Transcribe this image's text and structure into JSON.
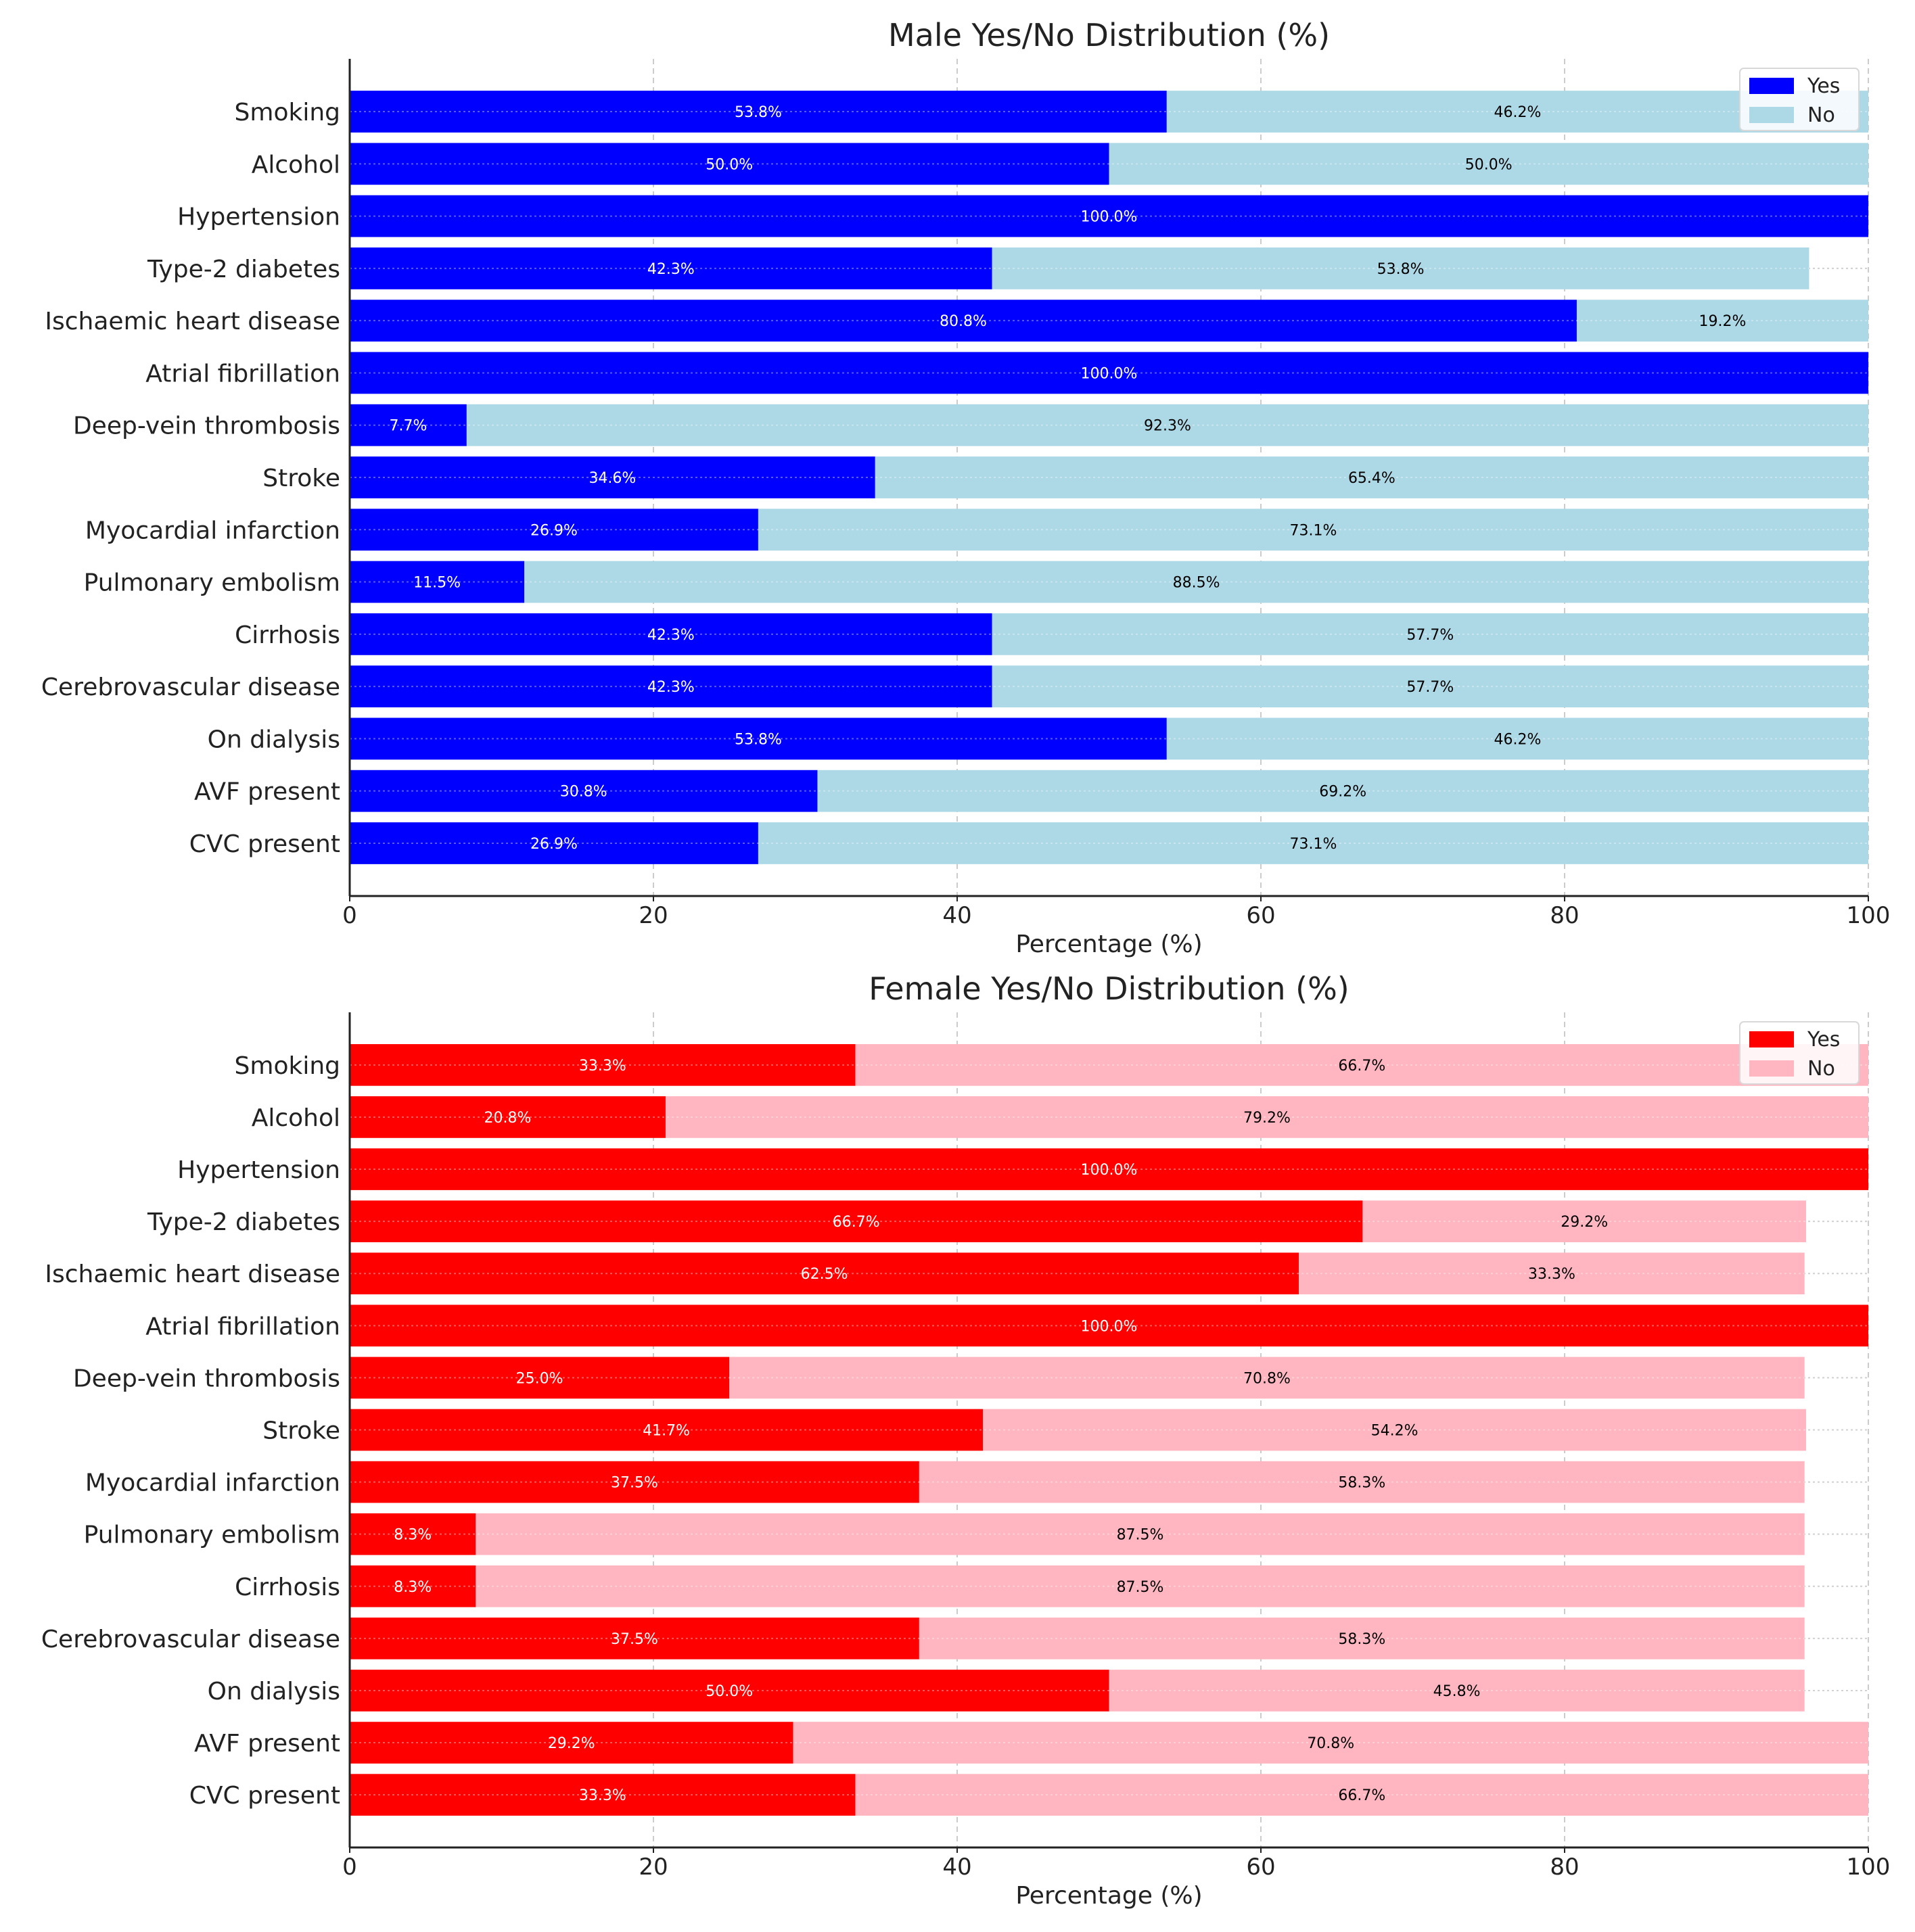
{
  "chart_data": [
    {
      "type": "bar",
      "orientation": "horizontal",
      "stacked": true,
      "title": "Male Yes/No Distribution (%)",
      "xlabel": "Percentage (%)",
      "ylabel": "",
      "xlim": [
        0,
        100
      ],
      "xticks": [
        "0",
        "20",
        "40",
        "60",
        "80",
        "100"
      ],
      "grid": true,
      "legend": "top-right",
      "categories": [
        "Smoking",
        "Alcohol",
        "Hypertension",
        "Type-2 diabetes",
        "Ischaemic heart disease",
        "Atrial fibrillation",
        "Deep-vein thrombosis",
        "Stroke",
        "Myocardial infarction",
        "Pulmonary embolism",
        "Cirrhosis",
        "Cerebrovascular disease",
        "On dialysis",
        "AVF present",
        "CVC present"
      ],
      "series": [
        {
          "name": "Yes",
          "color": "#0000ff",
          "label_color": "#ffffff",
          "values": [
            53.8,
            50.0,
            100.0,
            42.3,
            80.8,
            100.0,
            7.7,
            34.6,
            26.9,
            11.5,
            42.3,
            42.3,
            53.8,
            30.8,
            26.9
          ]
        },
        {
          "name": "No",
          "color": "#add8e6",
          "label_color": "#000000",
          "values": [
            46.2,
            50.0,
            0,
            53.8,
            19.2,
            0,
            92.3,
            65.4,
            73.1,
            88.5,
            57.7,
            57.7,
            46.2,
            69.2,
            73.1
          ]
        }
      ]
    },
    {
      "type": "bar",
      "orientation": "horizontal",
      "stacked": true,
      "title": "Female Yes/No Distribution (%)",
      "xlabel": "Percentage (%)",
      "ylabel": "",
      "xlim": [
        0,
        100
      ],
      "xticks": [
        "0",
        "20",
        "40",
        "60",
        "80",
        "100"
      ],
      "grid": true,
      "legend": "top-right",
      "categories": [
        "Smoking",
        "Alcohol",
        "Hypertension",
        "Type-2 diabetes",
        "Ischaemic heart disease",
        "Atrial fibrillation",
        "Deep-vein thrombosis",
        "Stroke",
        "Myocardial infarction",
        "Pulmonary embolism",
        "Cirrhosis",
        "Cerebrovascular disease",
        "On dialysis",
        "AVF present",
        "CVC present"
      ],
      "series": [
        {
          "name": "Yes",
          "color": "#ff0000",
          "label_color": "#ffffff",
          "values": [
            33.3,
            20.8,
            100.0,
            66.7,
            62.5,
            100.0,
            25.0,
            41.7,
            37.5,
            8.3,
            8.3,
            37.5,
            50.0,
            29.2,
            33.3
          ]
        },
        {
          "name": "No",
          "color": "#ffb6c1",
          "label_color": "#000000",
          "values": [
            66.7,
            79.2,
            0,
            29.2,
            33.3,
            0,
            70.8,
            54.2,
            58.3,
            87.5,
            87.5,
            58.3,
            45.8,
            70.8,
            66.7
          ]
        }
      ]
    }
  ]
}
